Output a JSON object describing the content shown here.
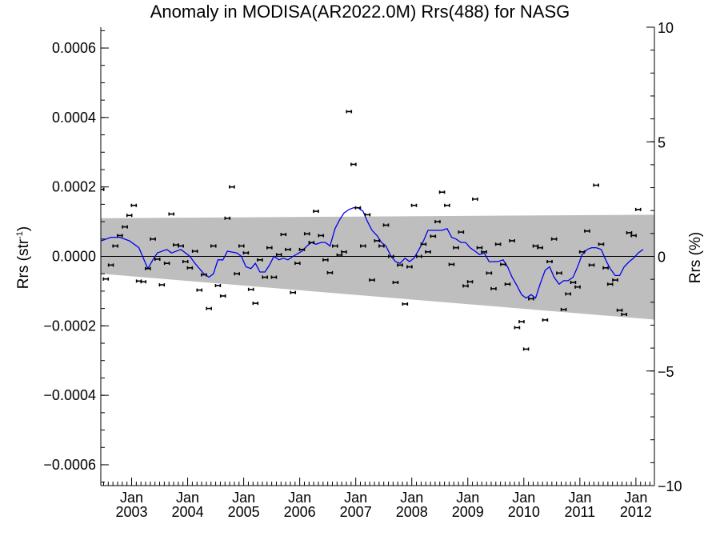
{
  "chart_data": {
    "type": "line",
    "title": "Anomaly in MODISA(AR2022.0M) Rrs(488) for NASG",
    "ylabel_left": "Rrs (str",
    "ylabel_left_sup": "-1",
    "ylabel_left_end": ")",
    "ylabel_right": "Rrs (%)",
    "y_left_range": [
      -0.00066,
      0.00066
    ],
    "y_right_range": [
      -10,
      10
    ],
    "x_range": [
      2002.45,
      2012.33
    ],
    "y_left_ticks": [
      {
        "value": 0.0006,
        "label": "0.0006"
      },
      {
        "value": 0.0004,
        "label": "0.0004"
      },
      {
        "value": 0.0002,
        "label": "0.0002"
      },
      {
        "value": 0.0,
        "label": "0.0000"
      },
      {
        "value": -0.0002,
        "label": "−0.0002"
      },
      {
        "value": -0.0004,
        "label": "−0.0004"
      },
      {
        "value": -0.0006,
        "label": "−0.0006"
      }
    ],
    "y_right_ticks": [
      {
        "value": 10,
        "label": "10"
      },
      {
        "value": 5,
        "label": "5"
      },
      {
        "value": 0,
        "label": "0"
      },
      {
        "value": -5,
        "label": "−5"
      },
      {
        "value": -10,
        "label": "−10"
      }
    ],
    "x_ticks": [
      {
        "value": 2003.0,
        "month": "Jan",
        "year": "2003"
      },
      {
        "value": 2004.0,
        "month": "Jan",
        "year": "2004"
      },
      {
        "value": 2005.0,
        "month": "Jan",
        "year": "2005"
      },
      {
        "value": 2006.0,
        "month": "Jan",
        "year": "2006"
      },
      {
        "value": 2007.0,
        "month": "Jan",
        "year": "2007"
      },
      {
        "value": 2008.0,
        "month": "Jan",
        "year": "2008"
      },
      {
        "value": 2009.0,
        "month": "Jan",
        "year": "2009"
      },
      {
        "value": 2010.0,
        "month": "Jan",
        "year": "2010"
      },
      {
        "value": 2011.0,
        "month": "Jan",
        "year": "2011"
      },
      {
        "value": 2012.0,
        "month": "Jan",
        "year": "2012"
      }
    ],
    "band": {
      "color": "#bebebe",
      "upper": [
        [
          2002.45,
          0.00011
        ],
        [
          2012.33,
          0.00012
        ]
      ],
      "lower": [
        [
          2002.45,
          -5e-05
        ],
        [
          2012.33,
          -0.000182
        ]
      ]
    },
    "zero_line_color": "#000000",
    "series": [
      {
        "style": "points_with_errorbars",
        "color": "#000000",
        "points": [
          [
            2002.46,
            0.000193
          ],
          [
            2002.54,
            -6.5e-05
          ],
          [
            2002.63,
            -2.5e-05
          ],
          [
            2002.71,
            3e-05
          ],
          [
            2002.79,
            6e-05
          ],
          [
            2002.88,
            8.5e-05
          ],
          [
            2002.96,
            0.000118
          ],
          [
            2003.04,
            0.000147
          ],
          [
            2003.13,
            -7.1e-05
          ],
          [
            2003.21,
            -7.3e-05
          ],
          [
            2003.29,
            -3.5e-05
          ],
          [
            2003.38,
            5e-05
          ],
          [
            2003.46,
            -8e-06
          ],
          [
            2003.54,
            -8.2e-05
          ],
          [
            2003.63,
            -2e-05
          ],
          [
            2003.71,
            0.000122
          ],
          [
            2003.79,
            3.3e-05
          ],
          [
            2003.88,
            3e-05
          ],
          [
            2003.96,
            -1.5e-05
          ],
          [
            2004.04,
            -3.3e-05
          ],
          [
            2004.13,
            1.5e-05
          ],
          [
            2004.21,
            -9.7e-05
          ],
          [
            2004.29,
            -5.3e-05
          ],
          [
            2004.38,
            -0.00015
          ],
          [
            2004.46,
            3e-05
          ],
          [
            2004.54,
            -8.4e-05
          ],
          [
            2004.63,
            -0.000114
          ],
          [
            2004.71,
            0.00011
          ],
          [
            2004.79,
            0.0002
          ],
          [
            2004.88,
            -5e-05
          ],
          [
            2004.96,
            3e-05
          ],
          [
            2005.04,
            1e-05
          ],
          [
            2005.13,
            -9.5e-05
          ],
          [
            2005.21,
            -0.000135
          ],
          [
            2005.29,
            -1e-05
          ],
          [
            2005.38,
            -6e-05
          ],
          [
            2005.46,
            2.5e-05
          ],
          [
            2005.54,
            -6e-05
          ],
          [
            2005.63,
            5e-06
          ],
          [
            2005.71,
            6.3e-05
          ],
          [
            2005.79,
            2e-05
          ],
          [
            2005.88,
            -0.000104
          ],
          [
            2005.96,
            -2e-05
          ],
          [
            2006.04,
            2e-05
          ],
          [
            2006.13,
            6.5e-05
          ],
          [
            2006.21,
            4e-05
          ],
          [
            2006.29,
            0.00013
          ],
          [
            2006.38,
            6e-05
          ],
          [
            2006.46,
            -1e-05
          ],
          [
            2006.54,
            -4.7e-05
          ],
          [
            2006.63,
            3e-05
          ],
          [
            2006.71,
            4e-06
          ],
          [
            2006.79,
            1.3e-05
          ],
          [
            2006.88,
            0.000417
          ],
          [
            2006.96,
            0.000265
          ],
          [
            2007.04,
            0.00014
          ],
          [
            2007.13,
            3e-05
          ],
          [
            2007.21,
            0.00012
          ],
          [
            2007.29,
            -6.8e-05
          ],
          [
            2007.38,
            4.5e-05
          ],
          [
            2007.46,
            3e-05
          ],
          [
            2007.54,
            9e-05
          ],
          [
            2007.63,
            0.0
          ],
          [
            2007.71,
            -7.5e-05
          ],
          [
            2007.79,
            -2.5e-05
          ],
          [
            2007.88,
            -0.000137
          ],
          [
            2007.96,
            -3e-05
          ],
          [
            2008.04,
            0.000147
          ],
          [
            2008.13,
            0.0
          ],
          [
            2008.21,
            3.5e-05
          ],
          [
            2008.29,
            1.3e-05
          ],
          [
            2008.38,
            5.8e-05
          ],
          [
            2008.46,
            0.0001
          ],
          [
            2008.54,
            0.000185
          ],
          [
            2008.63,
            0.000147
          ],
          [
            2008.71,
            -2.3e-05
          ],
          [
            2008.79,
            2.5e-05
          ],
          [
            2008.88,
            7e-05
          ],
          [
            2008.96,
            -8.5e-05
          ],
          [
            2009.04,
            -7.3e-05
          ],
          [
            2009.13,
            0.000165
          ],
          [
            2009.21,
            2.5e-05
          ],
          [
            2009.29,
            1.3e-05
          ],
          [
            2009.38,
            -4.8e-05
          ],
          [
            2009.46,
            -9.3e-05
          ],
          [
            2009.54,
            3.5e-05
          ],
          [
            2009.63,
            -2.3e-05
          ],
          [
            2009.71,
            -8e-05
          ],
          [
            2009.79,
            4.5e-05
          ],
          [
            2009.88,
            -0.000205
          ],
          [
            2009.96,
            -0.000188
          ],
          [
            2010.04,
            -0.000267
          ],
          [
            2010.13,
            -0.000122
          ],
          [
            2010.21,
            3e-05
          ],
          [
            2010.29,
            2.5e-05
          ],
          [
            2010.38,
            -0.000183
          ],
          [
            2010.46,
            -1.5e-05
          ],
          [
            2010.54,
            5e-05
          ],
          [
            2010.63,
            -4.8e-05
          ],
          [
            2010.71,
            -0.000153
          ],
          [
            2010.79,
            -0.000108
          ],
          [
            2010.88,
            -7.5e-05
          ],
          [
            2010.96,
            -8.8e-05
          ],
          [
            2011.04,
            1.3e-05
          ],
          [
            2011.13,
            7.3e-05
          ],
          [
            2011.21,
            -2.5e-05
          ],
          [
            2011.29,
            0.000205
          ],
          [
            2011.38,
            3.5e-05
          ],
          [
            2011.46,
            -3.3e-05
          ],
          [
            2011.54,
            -8e-05
          ],
          [
            2011.63,
            -6.8e-05
          ],
          [
            2011.71,
            -0.000155
          ],
          [
            2011.79,
            -0.000167
          ],
          [
            2011.88,
            6.8e-05
          ],
          [
            2011.96,
            6e-05
          ],
          [
            2012.04,
            0.000135
          ]
        ]
      },
      {
        "style": "line",
        "color": "#0000ee",
        "points": [
          [
            2002.46,
            4.5e-05
          ],
          [
            2002.63,
            5.5e-05
          ],
          [
            2002.79,
            5.5e-05
          ],
          [
            2002.96,
            4.5e-05
          ],
          [
            2003.13,
            2.5e-05
          ],
          [
            2003.21,
            -5e-06
          ],
          [
            2003.29,
            -3.5e-05
          ],
          [
            2003.38,
            -1e-05
          ],
          [
            2003.46,
            1e-05
          ],
          [
            2003.63,
            2e-05
          ],
          [
            2003.71,
            1e-05
          ],
          [
            2003.88,
            2e-05
          ],
          [
            2004.04,
            0.0
          ],
          [
            2004.13,
            -2e-05
          ],
          [
            2004.29,
            -5e-05
          ],
          [
            2004.38,
            -6e-05
          ],
          [
            2004.46,
            -5e-05
          ],
          [
            2004.54,
            -1e-05
          ],
          [
            2004.63,
            -1e-05
          ],
          [
            2004.71,
            1.5e-05
          ],
          [
            2004.88,
            1e-05
          ],
          [
            2004.96,
            0.0
          ],
          [
            2005.04,
            -3e-05
          ],
          [
            2005.13,
            -3.5e-05
          ],
          [
            2005.21,
            -2e-05
          ],
          [
            2005.29,
            -4.5e-05
          ],
          [
            2005.38,
            -4.5e-05
          ],
          [
            2005.46,
            -2.5e-05
          ],
          [
            2005.54,
            0.0
          ],
          [
            2005.63,
            -1e-05
          ],
          [
            2005.71,
            -5e-06
          ],
          [
            2005.79,
            -1e-05
          ],
          [
            2005.88,
            0.0
          ],
          [
            2006.04,
            1.5e-05
          ],
          [
            2006.13,
            3e-05
          ],
          [
            2006.21,
            4e-05
          ],
          [
            2006.29,
            3.5e-05
          ],
          [
            2006.38,
            4e-05
          ],
          [
            2006.46,
            4e-05
          ],
          [
            2006.54,
            3e-05
          ],
          [
            2006.63,
            8e-05
          ],
          [
            2006.71,
            0.000105
          ],
          [
            2006.79,
            0.000125
          ],
          [
            2006.88,
            0.000135
          ],
          [
            2006.96,
            0.00014
          ],
          [
            2007.04,
            0.00014
          ],
          [
            2007.13,
            0.00013
          ],
          [
            2007.21,
            0.0001
          ],
          [
            2007.29,
            7.5e-05
          ],
          [
            2007.38,
            6e-05
          ],
          [
            2007.46,
            4e-05
          ],
          [
            2007.54,
            3e-05
          ],
          [
            2007.63,
            0.0
          ],
          [
            2007.71,
            -1.5e-05
          ],
          [
            2007.79,
            -2e-05
          ],
          [
            2007.88,
            -5e-06
          ],
          [
            2007.96,
            -1.5e-05
          ],
          [
            2008.04,
            -5e-06
          ],
          [
            2008.13,
            2e-05
          ],
          [
            2008.21,
            4.5e-05
          ],
          [
            2008.29,
            7.5e-05
          ],
          [
            2008.38,
            7.5e-05
          ],
          [
            2008.46,
            7.5e-05
          ],
          [
            2008.54,
            7.5e-05
          ],
          [
            2008.63,
            8e-05
          ],
          [
            2008.71,
            5.5e-05
          ],
          [
            2008.79,
            5e-05
          ],
          [
            2008.88,
            4e-05
          ],
          [
            2008.96,
            4e-05
          ],
          [
            2009.04,
            2.5e-05
          ],
          [
            2009.13,
            1.5e-05
          ],
          [
            2009.21,
            5e-06
          ],
          [
            2009.29,
            1e-05
          ],
          [
            2009.38,
            -1.5e-05
          ],
          [
            2009.46,
            -1.5e-05
          ],
          [
            2009.54,
            -1.5e-05
          ],
          [
            2009.63,
            -1e-05
          ],
          [
            2009.71,
            -3e-05
          ],
          [
            2009.79,
            -6e-05
          ],
          [
            2009.88,
            -8.5e-05
          ],
          [
            2009.96,
            -0.00011
          ],
          [
            2010.04,
            -0.00012
          ],
          [
            2010.13,
            -0.00011
          ],
          [
            2010.21,
            -0.00012
          ],
          [
            2010.29,
            -8e-05
          ],
          [
            2010.38,
            -4e-05
          ],
          [
            2010.46,
            -3e-05
          ],
          [
            2010.54,
            -6e-05
          ],
          [
            2010.63,
            -8e-05
          ],
          [
            2010.71,
            -7e-05
          ],
          [
            2010.79,
            -7e-05
          ],
          [
            2010.88,
            -6e-05
          ],
          [
            2010.96,
            -3e-05
          ],
          [
            2011.04,
            5e-06
          ],
          [
            2011.13,
            2e-05
          ],
          [
            2011.21,
            2.5e-05
          ],
          [
            2011.29,
            2.5e-05
          ],
          [
            2011.38,
            2e-05
          ],
          [
            2011.46,
            -1e-05
          ],
          [
            2011.54,
            -3.5e-05
          ],
          [
            2011.63,
            -5.5e-05
          ],
          [
            2011.71,
            -5.5e-05
          ],
          [
            2011.79,
            -3e-05
          ],
          [
            2011.88,
            -1.5e-05
          ],
          [
            2011.96,
            -5e-06
          ],
          [
            2012.04,
            1e-05
          ],
          [
            2012.13,
            2e-05
          ]
        ]
      }
    ]
  }
}
